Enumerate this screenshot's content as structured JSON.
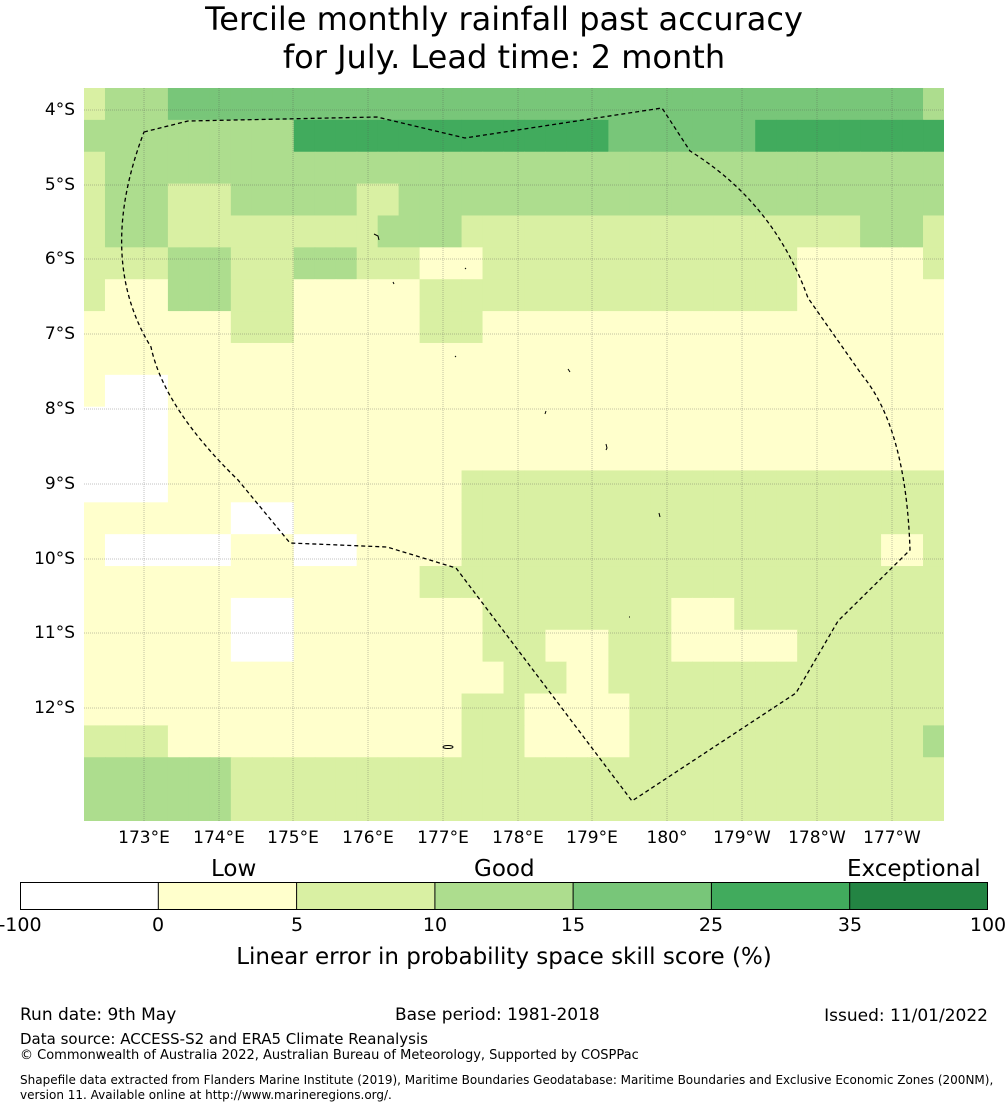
{
  "title_line1": "Tercile monthly rainfall past accuracy",
  "title_line2": "for July. Lead time: 2 month",
  "colors": {
    "negative": "#ffffff",
    "c0_5": "#ffffcc",
    "c5_10": "#d9f0a3",
    "c10_15": "#addd8e",
    "c15_25": "#78c679",
    "c25_35": "#41ab5d",
    "c35_100": "#238443",
    "grid": "#555555",
    "eez": "#000000"
  },
  "map": {
    "lat_labels": [
      "4°S",
      "5°S",
      "6°S",
      "7°S",
      "8°S",
      "9°S",
      "10°S",
      "11°S",
      "12°S"
    ],
    "lon_labels": [
      "173°E",
      "174°E",
      "175°E",
      "176°E",
      "177°E",
      "178°E",
      "179°E",
      "180°",
      "179°W",
      "178°W",
      "177°W"
    ],
    "boundary_style": "dashed",
    "grid": "dotted lines every 1°",
    "grid_values": [
      [
        2,
        3,
        3,
        3,
        4,
        4,
        4,
        4,
        4,
        4,
        4,
        4,
        4,
        4,
        4,
        4,
        4,
        4,
        4,
        4,
        4,
        4,
        4,
        4,
        4,
        4,
        4,
        4,
        4,
        4,
        4,
        4,
        4,
        4,
        4,
        4,
        4,
        4,
        4,
        4,
        3
      ],
      [
        3,
        3,
        3,
        3,
        3,
        3,
        3,
        3,
        3,
        3,
        5,
        5,
        5,
        5,
        5,
        5,
        5,
        5,
        5,
        5,
        5,
        5,
        5,
        5,
        5,
        4,
        4,
        4,
        4,
        4,
        4,
        4,
        5,
        5,
        5,
        5,
        5,
        5,
        5,
        5,
        5
      ],
      [
        2,
        3,
        3,
        3,
        3,
        3,
        3,
        3,
        3,
        3,
        3,
        3,
        3,
        3,
        3,
        3,
        3,
        3,
        3,
        3,
        3,
        3,
        3,
        3,
        3,
        3,
        3,
        3,
        3,
        3,
        3,
        3,
        3,
        3,
        3,
        3,
        3,
        3,
        3,
        3,
        3
      ],
      [
        2,
        3,
        3,
        3,
        2,
        2,
        2,
        3,
        3,
        3,
        3,
        3,
        3,
        2,
        2,
        3,
        3,
        3,
        3,
        3,
        3,
        3,
        3,
        3,
        3,
        3,
        3,
        3,
        3,
        3,
        3,
        3,
        3,
        3,
        3,
        3,
        3,
        3,
        3,
        3,
        3
      ],
      [
        2,
        3,
        3,
        3,
        2,
        2,
        2,
        2,
        2,
        2,
        2,
        2,
        2,
        2,
        3,
        3,
        3,
        3,
        2,
        2,
        2,
        2,
        2,
        2,
        2,
        2,
        2,
        2,
        2,
        2,
        2,
        2,
        2,
        2,
        2,
        2,
        2,
        3,
        3,
        3,
        2
      ],
      [
        2,
        2,
        2,
        2,
        3,
        3,
        3,
        2,
        2,
        2,
        3,
        3,
        3,
        2,
        2,
        2,
        1,
        1,
        1,
        2,
        2,
        2,
        2,
        2,
        2,
        2,
        2,
        2,
        2,
        2,
        2,
        2,
        2,
        2,
        1,
        1,
        1,
        1,
        1,
        1,
        2
      ],
      [
        2,
        1,
        1,
        1,
        3,
        3,
        3,
        2,
        2,
        2,
        1,
        1,
        1,
        1,
        1,
        1,
        2,
        2,
        2,
        2,
        2,
        2,
        2,
        2,
        2,
        2,
        2,
        2,
        2,
        2,
        2,
        2,
        2,
        2,
        1,
        1,
        1,
        1,
        1,
        1,
        1
      ],
      [
        1,
        1,
        1,
        1,
        1,
        1,
        1,
        2,
        2,
        2,
        1,
        1,
        1,
        1,
        1,
        1,
        2,
        2,
        2,
        1,
        1,
        1,
        1,
        1,
        1,
        1,
        1,
        1,
        1,
        1,
        1,
        1,
        1,
        1,
        1,
        1,
        1,
        1,
        1,
        1,
        1
      ],
      [
        1,
        1,
        1,
        1,
        1,
        1,
        1,
        1,
        1,
        1,
        1,
        1,
        1,
        1,
        1,
        1,
        1,
        1,
        1,
        1,
        1,
        1,
        1,
        1,
        1,
        1,
        1,
        1,
        1,
        1,
        1,
        1,
        1,
        1,
        1,
        1,
        1,
        1,
        1,
        1,
        1
      ],
      [
        1,
        0,
        0,
        0,
        1,
        1,
        1,
        1,
        1,
        1,
        1,
        1,
        1,
        1,
        1,
        1,
        1,
        1,
        1,
        1,
        1,
        1,
        1,
        1,
        1,
        1,
        1,
        1,
        1,
        1,
        1,
        1,
        1,
        1,
        1,
        1,
        1,
        1,
        1,
        1,
        1
      ],
      [
        0,
        0,
        0,
        0,
        1,
        1,
        1,
        1,
        1,
        1,
        1,
        1,
        1,
        1,
        1,
        1,
        1,
        1,
        1,
        1,
        1,
        1,
        1,
        1,
        1,
        1,
        1,
        1,
        1,
        1,
        1,
        1,
        1,
        1,
        1,
        1,
        1,
        1,
        1,
        1,
        1
      ],
      [
        0,
        0,
        0,
        0,
        1,
        1,
        1,
        1,
        1,
        1,
        1,
        1,
        1,
        1,
        1,
        1,
        1,
        1,
        1,
        1,
        1,
        1,
        1,
        1,
        1,
        1,
        1,
        1,
        1,
        1,
        1,
        1,
        1,
        1,
        1,
        1,
        1,
        1,
        1,
        1,
        1
      ],
      [
        0,
        0,
        0,
        0,
        1,
        1,
        1,
        1,
        1,
        1,
        1,
        1,
        1,
        1,
        1,
        1,
        1,
        1,
        2,
        2,
        2,
        2,
        2,
        2,
        2,
        2,
        2,
        2,
        2,
        2,
        2,
        2,
        2,
        2,
        2,
        2,
        2,
        2,
        2,
        2,
        2
      ],
      [
        1,
        1,
        1,
        1,
        1,
        1,
        1,
        0,
        0,
        0,
        1,
        1,
        1,
        1,
        1,
        1,
        1,
        1,
        2,
        2,
        2,
        2,
        2,
        2,
        2,
        2,
        2,
        2,
        2,
        2,
        2,
        2,
        2,
        2,
        2,
        2,
        2,
        2,
        2,
        2,
        2
      ],
      [
        1,
        0,
        0,
        0,
        0,
        0,
        0,
        1,
        1,
        1,
        0,
        0,
        0,
        1,
        1,
        1,
        1,
        1,
        2,
        2,
        2,
        2,
        2,
        2,
        2,
        2,
        2,
        2,
        2,
        2,
        2,
        2,
        2,
        2,
        2,
        2,
        2,
        2,
        1,
        1,
        2
      ],
      [
        1,
        1,
        1,
        1,
        1,
        1,
        1,
        1,
        1,
        1,
        1,
        1,
        1,
        1,
        1,
        1,
        2,
        2,
        2,
        2,
        2,
        2,
        2,
        2,
        2,
        2,
        2,
        2,
        2,
        2,
        2,
        2,
        2,
        2,
        2,
        2,
        2,
        2,
        2,
        2,
        2
      ],
      [
        1,
        1,
        1,
        1,
        1,
        1,
        1,
        0,
        0,
        0,
        1,
        1,
        1,
        1,
        1,
        1,
        1,
        1,
        1,
        2,
        2,
        2,
        2,
        2,
        2,
        2,
        2,
        2,
        1,
        1,
        1,
        2,
        2,
        2,
        2,
        2,
        2,
        2,
        2,
        2,
        2
      ],
      [
        1,
        1,
        1,
        1,
        1,
        1,
        1,
        0,
        0,
        0,
        1,
        1,
        1,
        1,
        1,
        1,
        1,
        1,
        1,
        2,
        2,
        2,
        1,
        1,
        1,
        2,
        2,
        2,
        1,
        1,
        1,
        1,
        1,
        1,
        2,
        2,
        2,
        2,
        2,
        2,
        2
      ],
      [
        1,
        1,
        1,
        1,
        1,
        1,
        1,
        1,
        1,
        1,
        1,
        1,
        1,
        1,
        1,
        1,
        1,
        1,
        1,
        1,
        2,
        2,
        2,
        1,
        1,
        2,
        2,
        2,
        2,
        2,
        2,
        2,
        2,
        2,
        2,
        2,
        2,
        2,
        2,
        2,
        2
      ],
      [
        1,
        1,
        1,
        1,
        1,
        1,
        1,
        1,
        1,
        1,
        1,
        1,
        1,
        1,
        1,
        1,
        1,
        1,
        2,
        2,
        2,
        1,
        1,
        1,
        1,
        1,
        2,
        2,
        2,
        2,
        2,
        2,
        2,
        2,
        2,
        2,
        2,
        2,
        2,
        2,
        2
      ],
      [
        2,
        2,
        2,
        2,
        1,
        1,
        1,
        1,
        1,
        1,
        1,
        1,
        1,
        1,
        1,
        1,
        1,
        1,
        2,
        2,
        2,
        1,
        1,
        1,
        1,
        1,
        2,
        2,
        2,
        2,
        2,
        2,
        2,
        2,
        2,
        2,
        2,
        2,
        2,
        2,
        3
      ],
      [
        3,
        3,
        3,
        3,
        3,
        3,
        3,
        2,
        2,
        2,
        2,
        2,
        2,
        2,
        2,
        2,
        2,
        2,
        2,
        2,
        2,
        2,
        2,
        2,
        2,
        2,
        2,
        2,
        2,
        2,
        2,
        2,
        2,
        2,
        2,
        2,
        2,
        2,
        2,
        2,
        2
      ],
      [
        3,
        3,
        3,
        3,
        3,
        3,
        3,
        2,
        2,
        2,
        2,
        2,
        2,
        2,
        2,
        2,
        2,
        2,
        2,
        2,
        2,
        2,
        2,
        2,
        2,
        2,
        2,
        2,
        2,
        2,
        2,
        2,
        2,
        2,
        2,
        2,
        2,
        2,
        2,
        2,
        2
      ]
    ]
  },
  "categories": {
    "low": "Low",
    "good": "Good",
    "exceptional": "Exceptional"
  },
  "colorbar": {
    "ticks": [
      "-100",
      "0",
      "5",
      "10",
      "15",
      "25",
      "35",
      "100"
    ],
    "label": "Linear error in probability space skill score (%)"
  },
  "footer": {
    "run_date": "Run date: 9th May",
    "base_period": "Base period: 1981-2018",
    "issued": "Issued: 11/01/2022",
    "data_source": "Data source: ACCESS-S2 and ERA5 Climate Reanalysis",
    "copyright": "© Commonwealth of Australia 2022, Australian Bureau of Meteorology, Supported by COSPPac",
    "shapefile_line1": "Shapefile data extracted from Flanders Marine Institute (2019), Maritime Boundaries Geodatabase: Maritime Boundaries and Exclusive Economic Zones (200NM),",
    "shapefile_line2": "version 11. Available online at http://www.marineregions.org/."
  }
}
